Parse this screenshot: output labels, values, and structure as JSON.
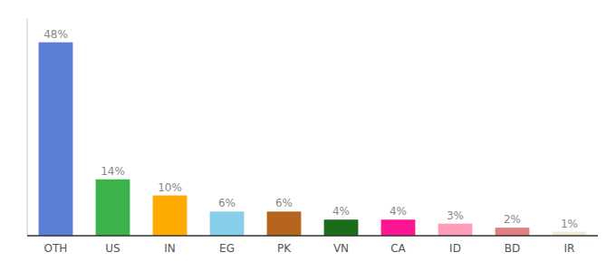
{
  "chart_data": {
    "type": "bar",
    "categories": [
      "OTH",
      "US",
      "IN",
      "EG",
      "PK",
      "VN",
      "CA",
      "ID",
      "BD",
      "IR"
    ],
    "values": [
      48,
      14,
      10,
      6,
      6,
      4,
      4,
      3,
      2,
      1
    ],
    "value_labels": [
      "48%",
      "14%",
      "10%",
      "6%",
      "6%",
      "4%",
      "4%",
      "3%",
      "2%",
      "1%"
    ],
    "colors": [
      "#5b7fd4",
      "#3cb34a",
      "#ffaa00",
      "#87ceeb",
      "#b5651d",
      "#1a6e1a",
      "#ff1493",
      "#ff9db8",
      "#e08080",
      "#f0ead6"
    ],
    "ylim": [
      0,
      54
    ],
    "data_labels": true,
    "tick_labels": "x",
    "grid": false
  }
}
